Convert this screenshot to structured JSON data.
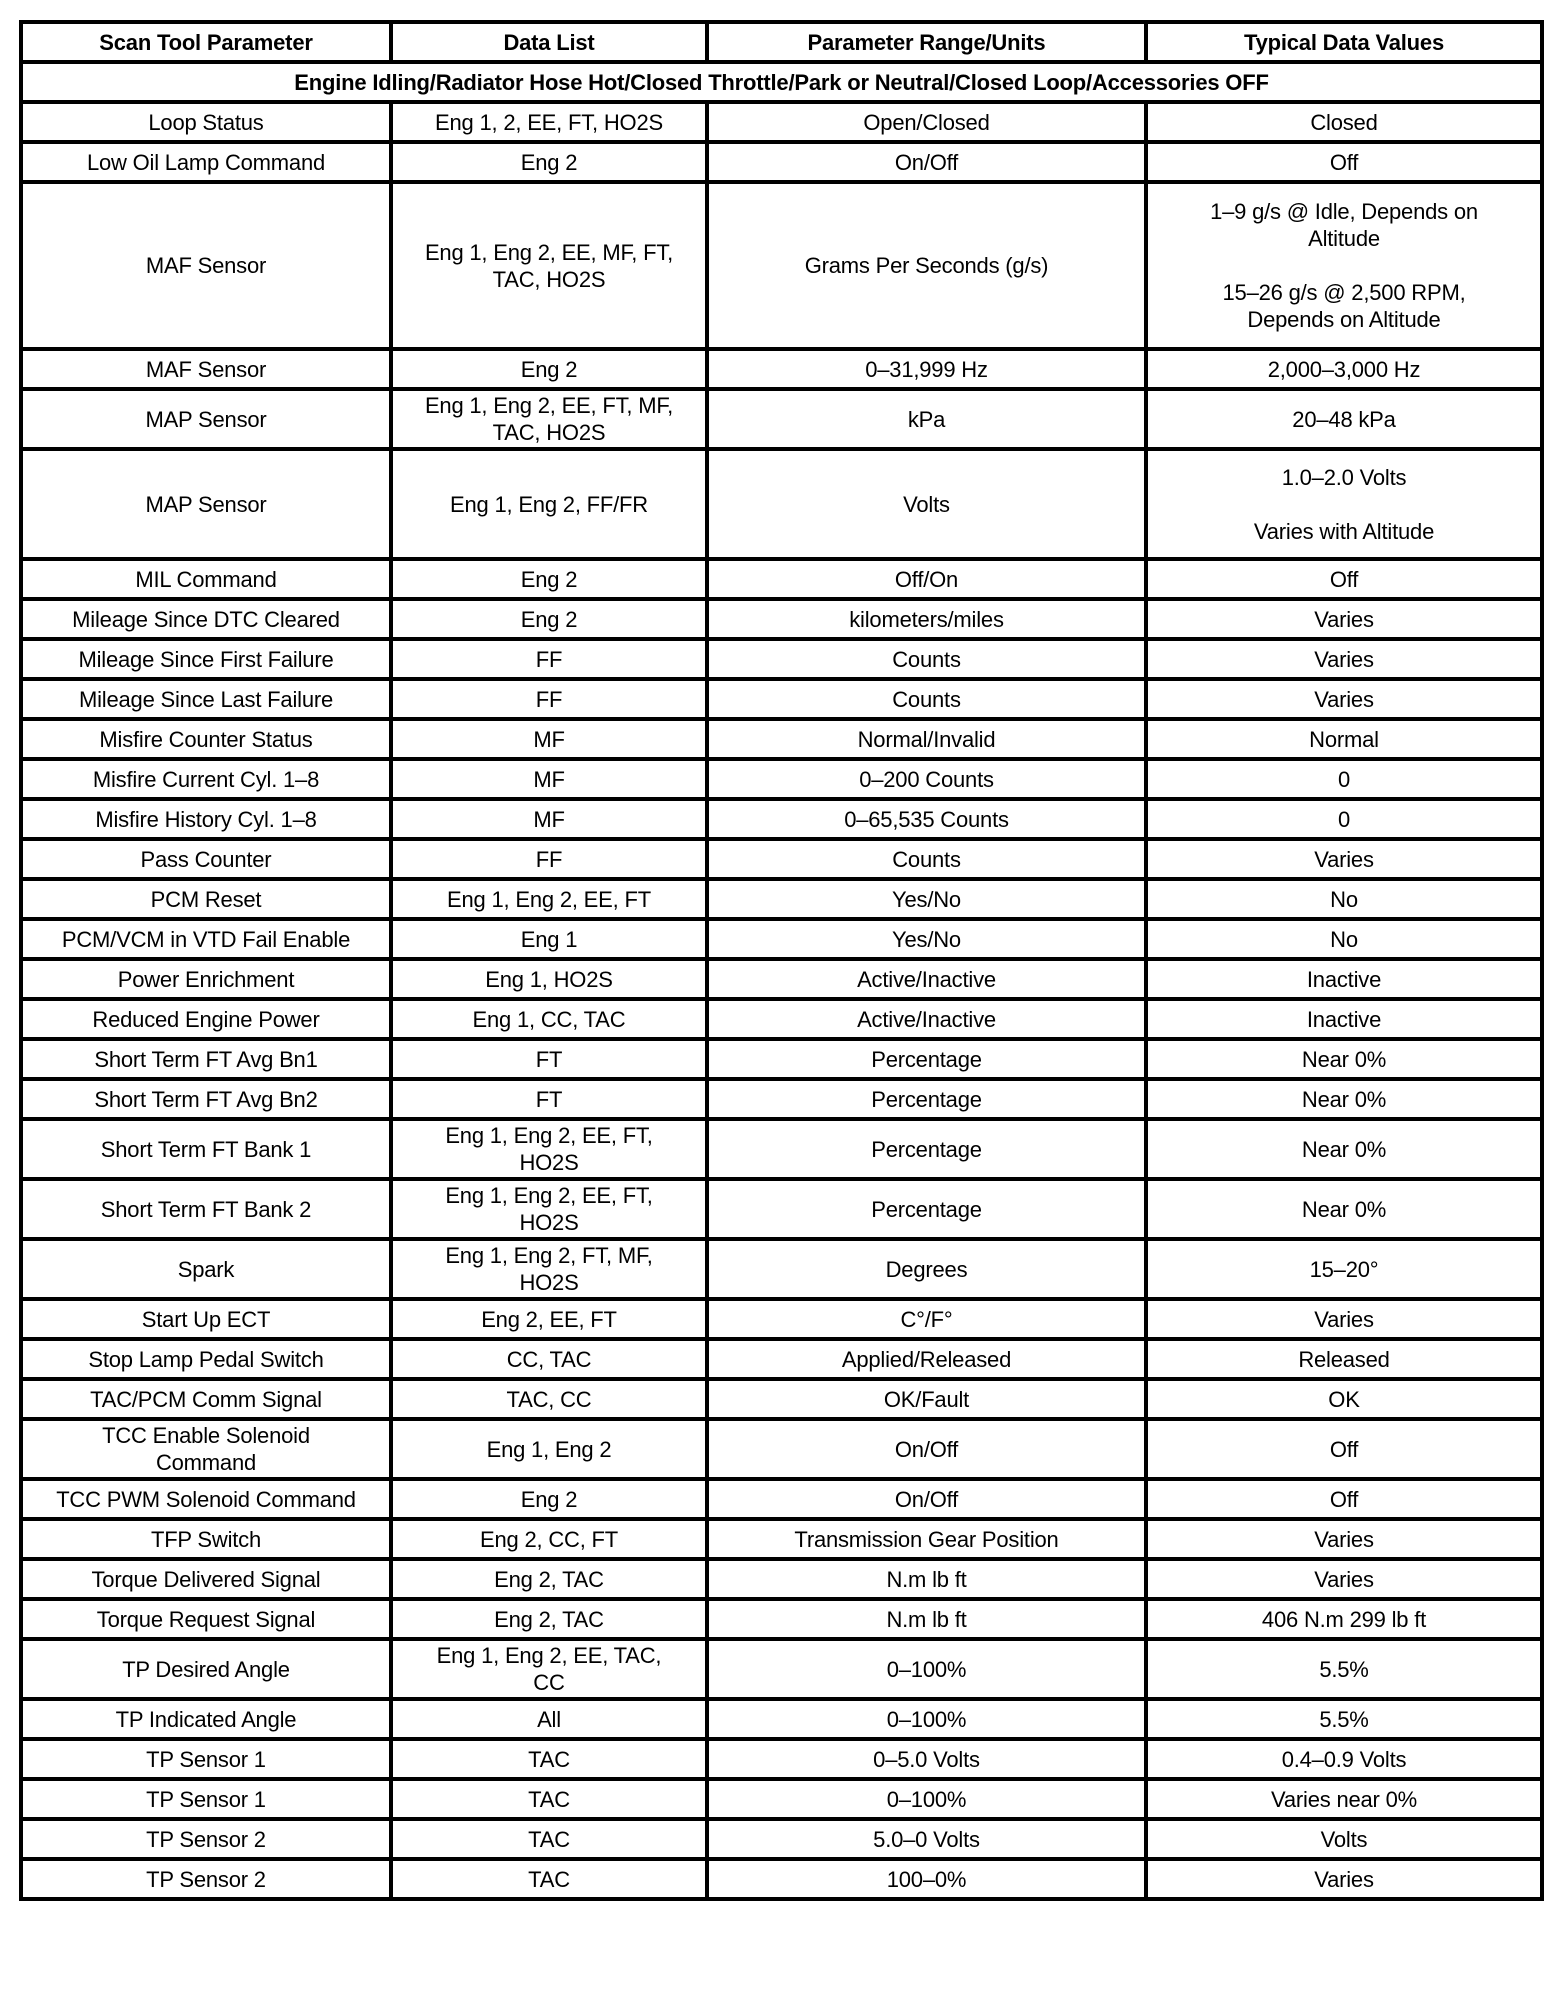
{
  "headers": [
    "Scan Tool Parameter",
    "Data List",
    "Parameter Range/Units",
    "Typical Data Values"
  ],
  "condition": "Engine Idling/Radiator Hose Hot/Closed Throttle/Park or Neutral/Closed Loop/Accessories OFF",
  "rows": [
    [
      "Loop Status",
      "Eng 1, 2, EE, FT, HO2S",
      "Open/Closed",
      "Closed"
    ],
    [
      "Low Oil Lamp Command",
      "Eng 2",
      "On/Off",
      "Off"
    ],
    [
      "MAF Sensor",
      "Eng 1, Eng 2, EE, MF, FT,\nTAC, HO2S",
      "Grams Per Seconds (g/s)",
      "1–9 g/s @ Idle, Depends on\nAltitude\n\n15–26 g/s @ 2,500 RPM,\nDepends on Altitude"
    ],
    [
      "MAF Sensor",
      "Eng 2",
      "0–31,999 Hz",
      "2,000–3,000 Hz"
    ],
    [
      "MAP Sensor",
      "Eng 1, Eng 2, EE, FT, MF,\nTAC, HO2S",
      "kPa",
      "20–48 kPa"
    ],
    [
      "MAP Sensor",
      "Eng 1, Eng 2, FF/FR",
      "Volts",
      "1.0–2.0 Volts\n\nVaries with Altitude"
    ],
    [
      "MIL Command",
      "Eng 2",
      "Off/On",
      "Off"
    ],
    [
      "Mileage Since DTC Cleared",
      "Eng 2",
      "kilometers/miles",
      "Varies"
    ],
    [
      "Mileage Since First Failure",
      "FF",
      "Counts",
      "Varies"
    ],
    [
      "Mileage Since Last Failure",
      "FF",
      "Counts",
      "Varies"
    ],
    [
      "Misfire Counter Status",
      "MF",
      "Normal/Invalid",
      "Normal"
    ],
    [
      "Misfire Current Cyl. 1–8",
      "MF",
      "0–200 Counts",
      "0"
    ],
    [
      "Misfire History Cyl. 1–8",
      "MF",
      "0–65,535 Counts",
      "0"
    ],
    [
      "Pass Counter",
      "FF",
      "Counts",
      "Varies"
    ],
    [
      "PCM Reset",
      "Eng 1, Eng 2, EE, FT",
      "Yes/No",
      "No"
    ],
    [
      "PCM/VCM in VTD Fail Enable",
      "Eng 1",
      "Yes/No",
      "No"
    ],
    [
      "Power Enrichment",
      "Eng 1, HO2S",
      "Active/Inactive",
      "Inactive"
    ],
    [
      "Reduced Engine Power",
      "Eng 1, CC, TAC",
      "Active/Inactive",
      "Inactive"
    ],
    [
      "Short Term FT Avg Bn1",
      "FT",
      "Percentage",
      "Near 0%"
    ],
    [
      "Short Term FT Avg Bn2",
      "FT",
      "Percentage",
      "Near 0%"
    ],
    [
      "Short Term FT Bank 1",
      "Eng 1, Eng 2, EE, FT,\nHO2S",
      "Percentage",
      "Near 0%"
    ],
    [
      "Short Term FT Bank 2",
      "Eng 1, Eng 2, EE, FT,\nHO2S",
      "Percentage",
      "Near 0%"
    ],
    [
      "Spark",
      "Eng 1, Eng 2, FT, MF,\nHO2S",
      "Degrees",
      "15–20°"
    ],
    [
      "Start Up ECT",
      "Eng 2, EE, FT",
      "C°/F°",
      "Varies"
    ],
    [
      "Stop Lamp Pedal Switch",
      "CC, TAC",
      "Applied/Released",
      "Released"
    ],
    [
      "TAC/PCM Comm Signal",
      "TAC, CC",
      "OK/Fault",
      "OK"
    ],
    [
      "TCC Enable Solenoid\nCommand",
      "Eng 1, Eng 2",
      "On/Off",
      "Off"
    ],
    [
      "TCC PWM Solenoid Command",
      "Eng 2",
      "On/Off",
      "Off"
    ],
    [
      "TFP Switch",
      "Eng 2, CC, FT",
      "Transmission Gear Position",
      "Varies"
    ],
    [
      "Torque Delivered Signal",
      "Eng 2, TAC",
      "N.m lb ft",
      "Varies"
    ],
    [
      "Torque Request Signal",
      "Eng 2, TAC",
      "N.m lb ft",
      "406 N.m 299 lb ft"
    ],
    [
      "TP Desired Angle",
      "Eng 1, Eng 2, EE, TAC,\nCC",
      "0–100%",
      "5.5%"
    ],
    [
      "TP Indicated Angle",
      "All",
      "0–100%",
      "5.5%"
    ],
    [
      "TP Sensor 1",
      "TAC",
      "0–5.0 Volts",
      "0.4–0.9 Volts"
    ],
    [
      "TP Sensor 1",
      "TAC",
      "0–100%",
      "Varies near 0%"
    ],
    [
      "TP Sensor 2",
      "TAC",
      "5.0–0 Volts",
      "Volts"
    ],
    [
      "TP Sensor 2",
      "TAC",
      "100–0%",
      "Varies"
    ]
  ]
}
